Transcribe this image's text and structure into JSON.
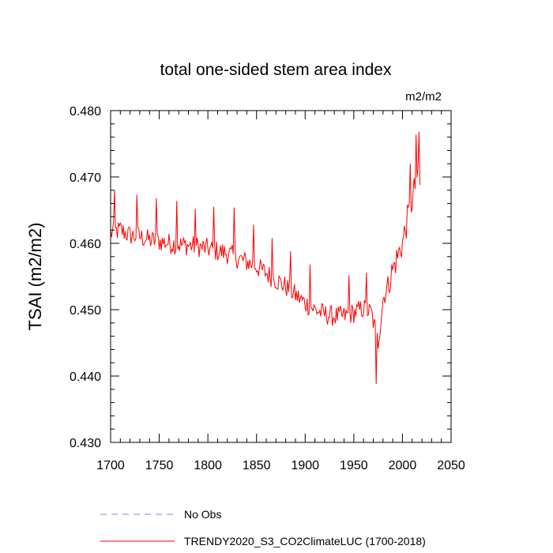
{
  "chart_data": {
    "type": "line",
    "title": "total one-sided stem area index",
    "units": "m2/m2",
    "xlabel": "",
    "ylabel": "TSAI  (m2/m2)",
    "xlim": [
      1700,
      2050
    ],
    "ylim": [
      0.43,
      0.48
    ],
    "x_ticks": [
      1700,
      1750,
      1800,
      1850,
      1900,
      1950,
      2000,
      2050
    ],
    "x_tick_labels": [
      "1700",
      "1750",
      "1800",
      "1850",
      "1900",
      "1950",
      "2000",
      "2050"
    ],
    "y_ticks": [
      0.43,
      0.44,
      0.45,
      0.46,
      0.47,
      0.48
    ],
    "y_tick_labels": [
      "0.430",
      "0.440",
      "0.450",
      "0.460",
      "0.470",
      "0.480"
    ],
    "series": [
      {
        "name": "TRENDY2020_S3_CO2ClimateLUC (1700-2018)",
        "color": "#ff0000",
        "style": "solid",
        "x_start": 1700,
        "x_end": 2018,
        "keypoints": [
          [
            1700,
            0.4615
          ],
          [
            1710,
            0.462
          ],
          [
            1720,
            0.4612
          ],
          [
            1730,
            0.461
          ],
          [
            1740,
            0.4605
          ],
          [
            1750,
            0.4603
          ],
          [
            1760,
            0.46
          ],
          [
            1770,
            0.4598
          ],
          [
            1780,
            0.4597
          ],
          [
            1790,
            0.4595
          ],
          [
            1800,
            0.4592
          ],
          [
            1810,
            0.4588
          ],
          [
            1820,
            0.4585
          ],
          [
            1830,
            0.4578
          ],
          [
            1840,
            0.4572
          ],
          [
            1850,
            0.4565
          ],
          [
            1860,
            0.4555
          ],
          [
            1870,
            0.4545
          ],
          [
            1880,
            0.4535
          ],
          [
            1890,
            0.4522
          ],
          [
            1900,
            0.451
          ],
          [
            1910,
            0.45
          ],
          [
            1920,
            0.4493
          ],
          [
            1930,
            0.449
          ],
          [
            1940,
            0.449
          ],
          [
            1950,
            0.4495
          ],
          [
            1960,
            0.4502
          ],
          [
            1968,
            0.4495
          ],
          [
            1975,
            0.445
          ],
          [
            1980,
            0.4515
          ],
          [
            1990,
            0.456
          ],
          [
            2000,
            0.46
          ],
          [
            2005,
            0.4635
          ],
          [
            2010,
            0.4665
          ],
          [
            2015,
            0.47
          ],
          [
            2018,
            0.468
          ]
        ],
        "spikes": [
          [
            1704,
            0.468
          ],
          [
            1727,
            0.4673
          ],
          [
            1747,
            0.4668
          ],
          [
            1768,
            0.4664
          ],
          [
            1787,
            0.4652
          ],
          [
            1806,
            0.4655
          ],
          [
            1827,
            0.4654
          ],
          [
            1847,
            0.4628
          ],
          [
            1866,
            0.4608
          ],
          [
            1885,
            0.4588
          ],
          [
            1905,
            0.4568
          ],
          [
            1945,
            0.4552
          ],
          [
            1963,
            0.4556
          ],
          [
            1973,
            0.4388
          ],
          [
            2008,
            0.472
          ],
          [
            2014,
            0.4764
          ],
          [
            2017,
            0.4768
          ]
        ],
        "noise_amplitude": 0.0016
      },
      {
        "name": "No Obs",
        "color": "#8080ff",
        "style": "dashed",
        "values": []
      }
    ],
    "legend_position": "bottom-left"
  }
}
